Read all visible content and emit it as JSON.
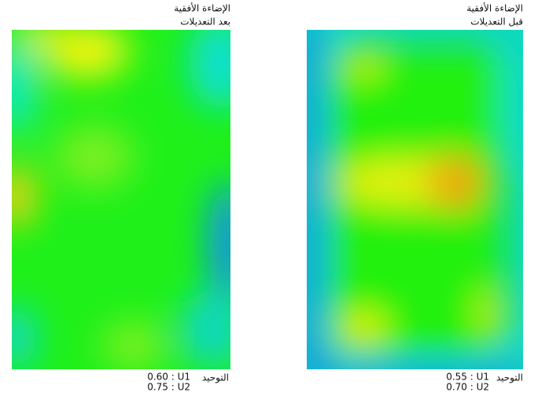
{
  "panels": [
    {
      "title": "الإضاءة الأفقية",
      "subtitle": "بعد التعديلات",
      "uniformity_label": "التوحيد",
      "u1": "0.60 : U1",
      "u2": "0.75 : U2"
    },
    {
      "title": "الإضاءة الأفقية",
      "subtitle": "قبل التعديلات",
      "uniformity_label": "التوحيد",
      "u1": "0.55 : U1",
      "u2": "0.70 : U2"
    }
  ]
}
